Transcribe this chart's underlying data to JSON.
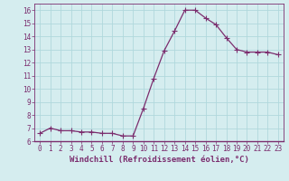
{
  "x": [
    0,
    1,
    2,
    3,
    4,
    5,
    6,
    7,
    8,
    9,
    10,
    11,
    12,
    13,
    14,
    15,
    16,
    17,
    18,
    19,
    20,
    21,
    22,
    23
  ],
  "y": [
    6.6,
    7.0,
    6.8,
    6.8,
    6.7,
    6.7,
    6.6,
    6.6,
    6.4,
    6.4,
    8.5,
    10.8,
    12.9,
    14.4,
    16.0,
    16.0,
    15.4,
    14.9,
    13.9,
    13.0,
    12.8,
    12.8,
    12.8,
    12.6
  ],
  "line_color": "#7B2D6E",
  "marker": "+",
  "marker_size": 4,
  "bg_color": "#d5edef",
  "grid_color": "#b0d8dc",
  "xlabel": "Windchill (Refroidissement éolien,°C)",
  "xlim": [
    -0.5,
    23.5
  ],
  "ylim": [
    6.0,
    16.5
  ],
  "yticks": [
    6,
    7,
    8,
    9,
    10,
    11,
    12,
    13,
    14,
    15,
    16
  ],
  "xticks": [
    0,
    1,
    2,
    3,
    4,
    5,
    6,
    7,
    8,
    9,
    10,
    11,
    12,
    13,
    14,
    15,
    16,
    17,
    18,
    19,
    20,
    21,
    22,
    23
  ],
  "tick_fontsize": 5.5,
  "xlabel_fontsize": 6.5,
  "spine_color": "#7B2D6E",
  "linewidth": 0.9,
  "marker_lw": 0.8
}
